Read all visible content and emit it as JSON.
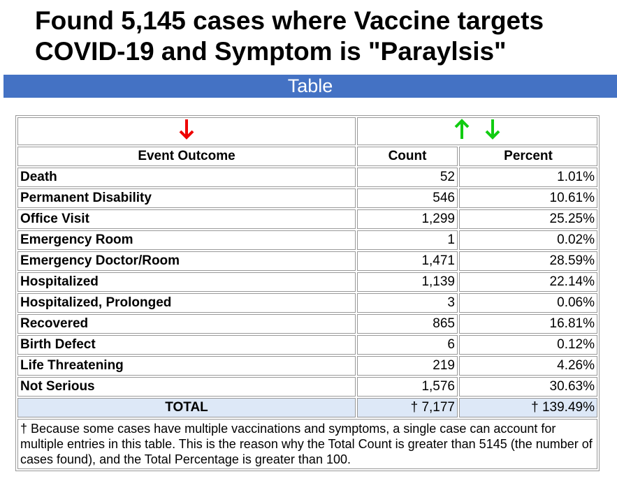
{
  "header": {
    "title": "Found 5,145 cases where Vaccine targets COVID-19 and Symptom is \"Paraylsis\"",
    "banner": "Table"
  },
  "table": {
    "columns": [
      "Event Outcome",
      "Count",
      "Percent"
    ],
    "rows": [
      [
        "Death",
        "52",
        "1.01%"
      ],
      [
        "Permanent Disability",
        "546",
        "10.61%"
      ],
      [
        "Office Visit",
        "1,299",
        "25.25%"
      ],
      [
        "Emergency Room",
        "1",
        "0.02%"
      ],
      [
        "Emergency Doctor/Room",
        "1,471",
        "28.59%"
      ],
      [
        "Hospitalized",
        "1,139",
        "22.14%"
      ],
      [
        "Hospitalized, Prolonged",
        "3",
        "0.06%"
      ],
      [
        "Recovered",
        "865",
        "16.81%"
      ],
      [
        "Birth Defect",
        "6",
        "0.12%"
      ],
      [
        "Life Threatening",
        "219",
        "4.26%"
      ],
      [
        "Not Serious",
        "1,576",
        "30.63%"
      ]
    ],
    "total": [
      "TOTAL",
      "† 7,177",
      "† 139.49%"
    ],
    "footnote": "† Because some cases have multiple vaccinations and symptoms, a single case can account for multiple entries in this table. This is the reason why the Total Count is greater than 5145 (the number of cases found), and the Total Percentage is greater than 100."
  }
}
